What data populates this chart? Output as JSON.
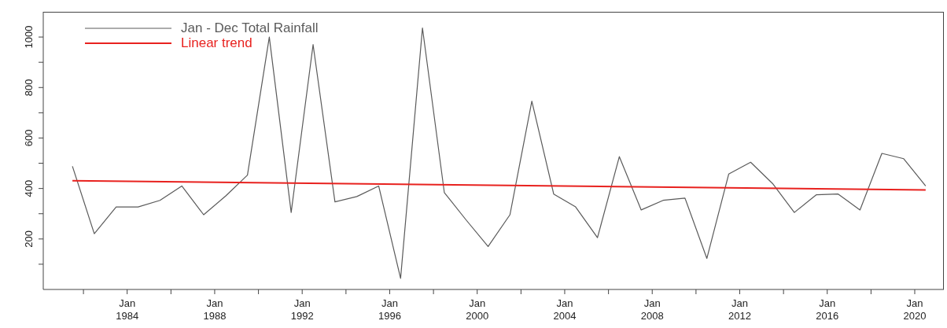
{
  "chart_data": {
    "type": "line",
    "legend": "top left",
    "marker": "none",
    "line_style": "solid",
    "xlim": [
      "1980-03-01",
      "2021-05-01"
    ],
    "xticks": [
      {
        "value": "1982-01-01",
        "label": null
      },
      {
        "value": "1984-01-01",
        "label": "Jan 1984"
      },
      {
        "value": "1986-01-01",
        "label": null
      },
      {
        "value": "1988-01-01",
        "label": "Jan 1988"
      },
      {
        "value": "1990-01-01",
        "label": null
      },
      {
        "value": "1992-01-01",
        "label": "Jan 1992"
      },
      {
        "value": "1994-01-01",
        "label": null
      },
      {
        "value": "1996-01-01",
        "label": "Jan 1996"
      },
      {
        "value": "1998-01-01",
        "label": null
      },
      {
        "value": "2000-01-01",
        "label": "Jan 2000"
      },
      {
        "value": "2002-01-01",
        "label": null
      },
      {
        "value": "2004-01-01",
        "label": "Jan 2004"
      },
      {
        "value": "2006-01-01",
        "label": null
      },
      {
        "value": "2008-01-01",
        "label": "Jan 2008"
      },
      {
        "value": "2010-01-01",
        "label": null
      },
      {
        "value": "2012-01-01",
        "label": "Jan 2012"
      },
      {
        "value": "2014-01-01",
        "label": null
      },
      {
        "value": "2016-01-01",
        "label": "Jan 2016"
      },
      {
        "value": "2018-01-01",
        "label": null
      },
      {
        "value": "2020-01-01",
        "label": "Jan 2020"
      }
    ],
    "ylim": [
      0,
      1100
    ],
    "yticks": [
      {
        "value": 100,
        "label": null
      },
      200,
      {
        "value": 300,
        "label": null
      },
      400,
      {
        "value": 500,
        "label": null
      },
      600,
      {
        "value": 700,
        "label": null
      },
      800,
      {
        "value": 900,
        "label": null
      },
      1000
    ],
    "series": [
      {
        "name": "Jan - Dec Total Rainfall",
        "color": "#5a5a5a",
        "x": [
          "1981-07",
          "1982-07",
          "1983-07",
          "1984-07",
          "1985-07",
          "1986-07",
          "1987-07",
          "1988-07",
          "1989-07",
          "1990-07",
          "1991-07",
          "1992-07",
          "1993-07",
          "1994-07",
          "1995-07",
          "1996-07",
          "1997-07",
          "1998-07",
          "1999-07",
          "2000-07",
          "2001-07",
          "2002-07",
          "2003-07",
          "2004-07",
          "2005-07",
          "2006-07",
          "2007-07",
          "2008-07",
          "2009-07",
          "2010-07",
          "2011-07",
          "2012-07",
          "2013-07",
          "2014-07",
          "2015-07",
          "2016-07",
          "2017-07",
          "2018-07",
          "2019-07",
          "2020-07"
        ],
        "values": [
          488,
          221,
          327,
          327,
          353,
          410,
          296,
          370,
          453,
          1000,
          305,
          970,
          347,
          368,
          410,
          44,
          1036,
          384,
          275,
          170,
          296,
          746,
          378,
          327,
          205,
          526,
          315,
          353,
          362,
          123,
          457,
          504,
          420,
          305,
          375,
          378,
          315,
          539,
          518,
          410
        ]
      },
      {
        "name": "Linear trend",
        "color": "#e8221f",
        "type": "line",
        "x": [
          "1981-07",
          "2020-07"
        ],
        "values": [
          431,
          394
        ]
      }
    ]
  }
}
